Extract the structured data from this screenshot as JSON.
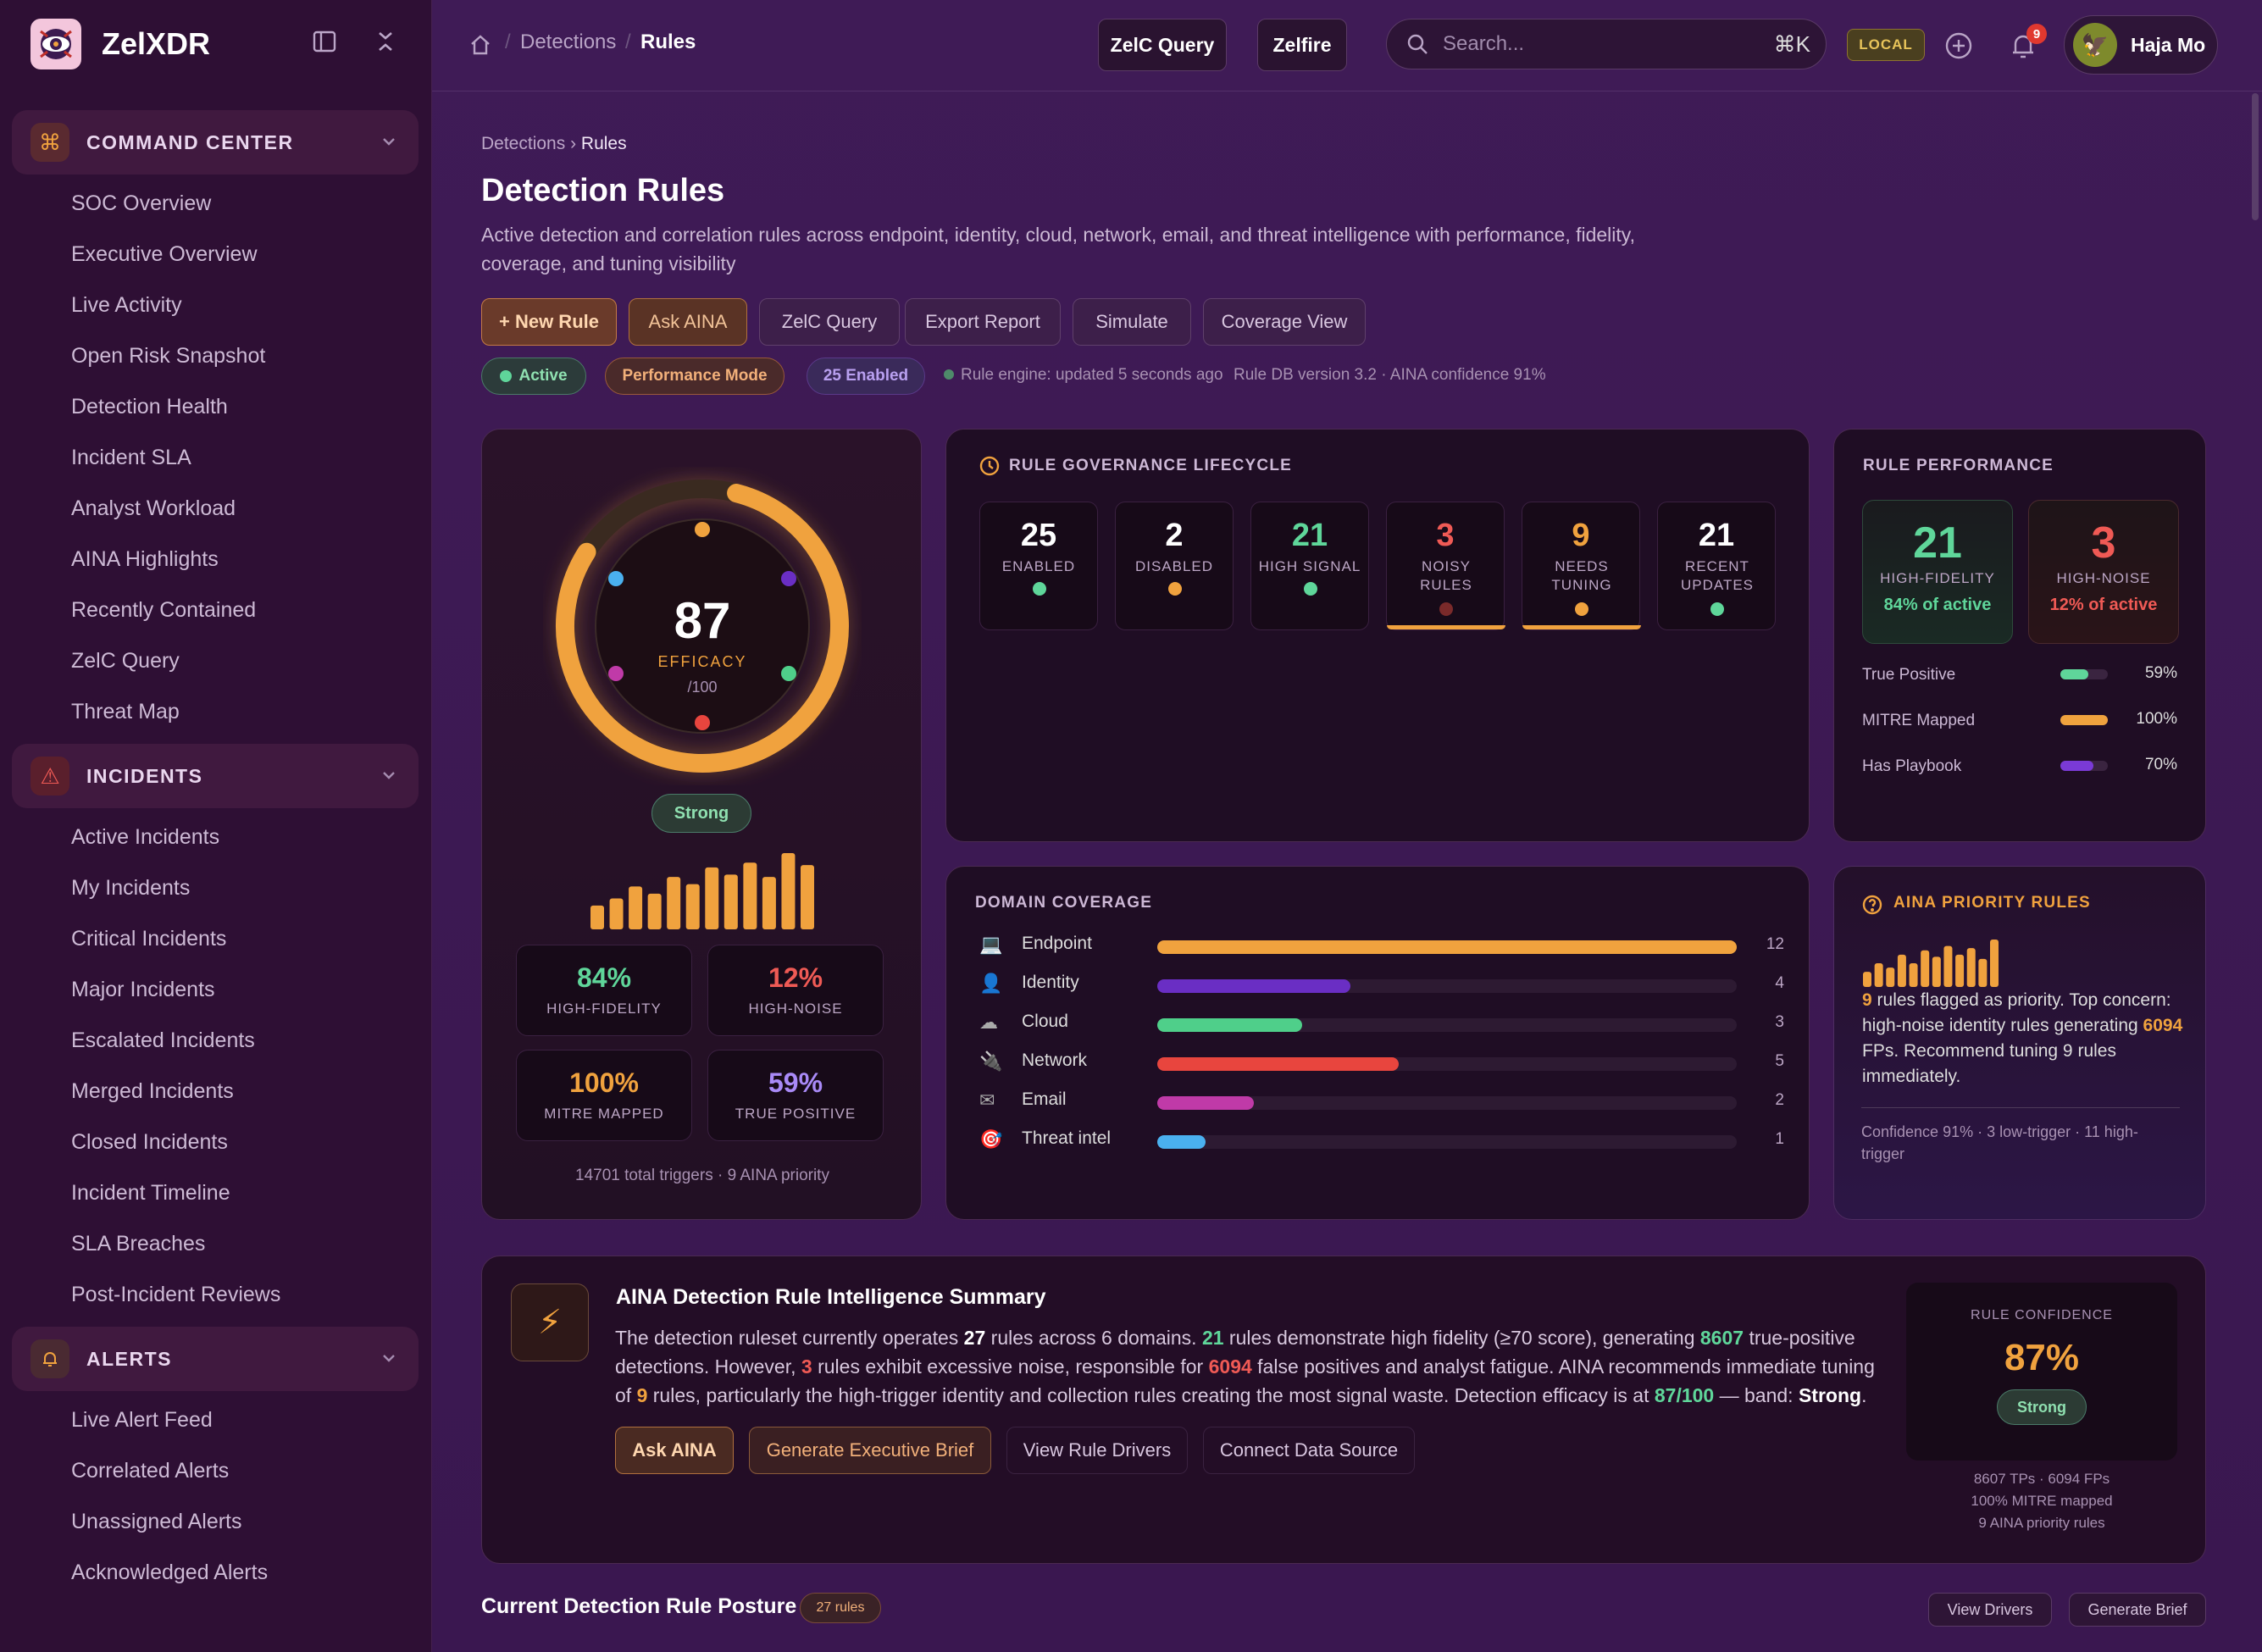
{
  "brand": {
    "name": "ZelXDR"
  },
  "sidebar": {
    "sections": [
      {
        "label": "COMMAND CENTER",
        "items": [
          "SOC Overview",
          "Executive Overview",
          "Live Activity",
          "Open Risk Snapshot",
          "Detection Health",
          "Incident SLA",
          "Analyst Workload",
          "AINA Highlights",
          "Recently Contained",
          "ZelC Query",
          "Threat Map"
        ]
      },
      {
        "label": "INCIDENTS",
        "items": [
          "Active Incidents",
          "My Incidents",
          "Critical Incidents",
          "Major Incidents",
          "Escalated Incidents",
          "Merged Incidents",
          "Closed Incidents",
          "Incident Timeline",
          "SLA Breaches",
          "Post-Incident Reviews"
        ]
      },
      {
        "label": "ALERTS",
        "items": [
          "Live Alert Feed",
          "Correlated Alerts",
          "Unassigned Alerts",
          "Acknowledged Alerts"
        ]
      }
    ]
  },
  "topbar": {
    "crumb1": "Detections",
    "crumb_sep": "/",
    "crumb2": "Rules",
    "zelc_query": "ZelC Query",
    "zelfire": "Zelfire",
    "search_placeholder": "Search...",
    "shortcut": "⌘K",
    "env": "LOCAL",
    "notifications": "9",
    "user": "Haja Mo"
  },
  "page": {
    "breadcrumb_parent": "Detections",
    "breadcrumb_sep": "›",
    "breadcrumb_current": "Rules",
    "title": "Detection Rules",
    "description": "Active detection and correlation rules across endpoint, identity, cloud, network, email, and threat intelligence with performance, fidelity, coverage, and tuning visibility",
    "actions": [
      "+ New Rule",
      "Ask AINA",
      "ZelC Query",
      "Export Report",
      "Simulate",
      "Coverage View"
    ],
    "pills": {
      "active": "Active",
      "perf": "Performance Mode",
      "enabled": "25 Enabled"
    },
    "status": "Rule engine: updated 5 seconds ago",
    "db": "Rule DB version 3.2 · AINA confidence 91%"
  },
  "efficacy": {
    "score": "87",
    "label": "EFFICACY",
    "max": "/100",
    "value_fraction": 0.87,
    "band": "Strong",
    "bars": [
      20,
      26,
      36,
      30,
      44,
      38,
      52,
      46,
      56,
      44,
      64,
      54
    ],
    "tiles": [
      {
        "value": "84%",
        "label": "HIGH-FIDELITY",
        "color": "#5fd69a"
      },
      {
        "value": "12%",
        "label": "HIGH-NOISE",
        "color": "#ef5a55"
      },
      {
        "value": "100%",
        "label": "MITRE MAPPED",
        "color": "#f0a23e"
      },
      {
        "value": "59%",
        "label": "TRUE POSITIVE",
        "color": "#a98af7"
      }
    ],
    "footer": "14701 total triggers · 9 AINA priority"
  },
  "lifecycle": {
    "title": "RULE GOVERNANCE LIFECYCLE",
    "stats": [
      {
        "num": "25",
        "label": "ENABLED",
        "color": "#ffffff",
        "dot": "#5fd69a"
      },
      {
        "num": "2",
        "label": "DISABLED",
        "color": "#ffffff",
        "dot": "#f0a23e"
      },
      {
        "num": "21",
        "label": "HIGH SIGNAL",
        "color": "#5fd69a",
        "dot": "#5fd69a"
      },
      {
        "num": "3",
        "label": "NOISY RULES",
        "color": "#ef5a55",
        "dot": "#7a2a2a"
      },
      {
        "num": "9",
        "label": "NEEDS TUNING",
        "color": "#f0a23e",
        "dot": "#f0a23e"
      },
      {
        "num": "21",
        "label": "RECENT UPDATES",
        "color": "#ffffff",
        "dot": "#5fd69a"
      }
    ]
  },
  "performance": {
    "title": "RULE PERFORMANCE",
    "high_fidelity": {
      "num": "21",
      "label": "HIGH-FIDELITY",
      "sub": "84% of active"
    },
    "high_noise": {
      "num": "3",
      "label": "HIGH-NOISE",
      "sub": "12% of active"
    },
    "rows": [
      {
        "label": "True Positive",
        "pct": "59%",
        "fraction": 0.59,
        "color": "#5fd69a"
      },
      {
        "label": "MITRE Mapped",
        "pct": "100%",
        "fraction": 1.0,
        "color": "#f0a23e"
      },
      {
        "label": "Has Playbook",
        "pct": "70%",
        "fraction": 0.7,
        "color": "#7a3ad6"
      }
    ]
  },
  "domains": {
    "title": "DOMAIN COVERAGE",
    "rows": [
      {
        "name": "Endpoint",
        "count": "12",
        "value": 12,
        "color": "#f0a23e",
        "icon": "💻"
      },
      {
        "name": "Identity",
        "count": "4",
        "value": 4,
        "color": "#6a2ec4",
        "icon": "👤"
      },
      {
        "name": "Cloud",
        "count": "3",
        "value": 3,
        "color": "#4fcf8a",
        "icon": "☁"
      },
      {
        "name": "Network",
        "count": "5",
        "value": 5,
        "color": "#e8453e",
        "icon": "🔌"
      },
      {
        "name": "Email",
        "count": "2",
        "value": 2,
        "color": "#c03aa8",
        "icon": "✉"
      },
      {
        "name": "Threat intel",
        "count": "1",
        "value": 1,
        "color": "#4ab0ef",
        "icon": "🎯"
      }
    ]
  },
  "aina_priority": {
    "title": "AINA PRIORITY RULES",
    "bars": [
      14,
      22,
      18,
      30,
      22,
      34,
      28,
      38,
      30,
      36,
      26,
      44
    ],
    "text_a": "9",
    "text_b": " rules flagged as priority. Top concern: high-noise identity rules generating ",
    "text_c": "6094",
    "text_d": " FPs. Recommend tuning 9 rules immediately.",
    "footer": "Confidence 91% · 3 low-trigger · 11 high-trigger"
  },
  "summary": {
    "title": "AINA Detection Rule Intelligence Summary",
    "p1": "The detection ruleset currently operates ",
    "n_rules": "27",
    "p2": " rules across 6 domains. ",
    "n_hf": "21",
    "p3": " rules demonstrate high fidelity (≥70 score), generating ",
    "n_tp": "8607",
    "p4": " true-positive detections. However, ",
    "n_noise": "3",
    "p5": " rules exhibit excessive noise, responsible for ",
    "n_fp": "6094",
    "p6": " false positives and analyst fatigue. AINA recommends immediate tuning of ",
    "n_tune": "9",
    "p7": " rules, particularly the high-trigger identity and collection rules creating the most signal waste. Detection efficacy is at ",
    "eff": "87/100",
    "p8": " — band: ",
    "band": "Strong",
    "p9": ".",
    "buttons": [
      "Ask AINA",
      "Generate Executive Brief",
      "View Rule Drivers",
      "Connect Data Source"
    ],
    "conf_label": "RULE CONFIDENCE",
    "conf_value": "87%",
    "conf_band": "Strong",
    "conf_lines": [
      "8607 TPs · 6094 FPs",
      "100% MITRE mapped",
      "9 AINA priority rules"
    ]
  },
  "posture": {
    "title": "Current Detection Rule Posture",
    "count": "27 rules",
    "btn1": "View Drivers",
    "btn2": "Generate Brief"
  }
}
